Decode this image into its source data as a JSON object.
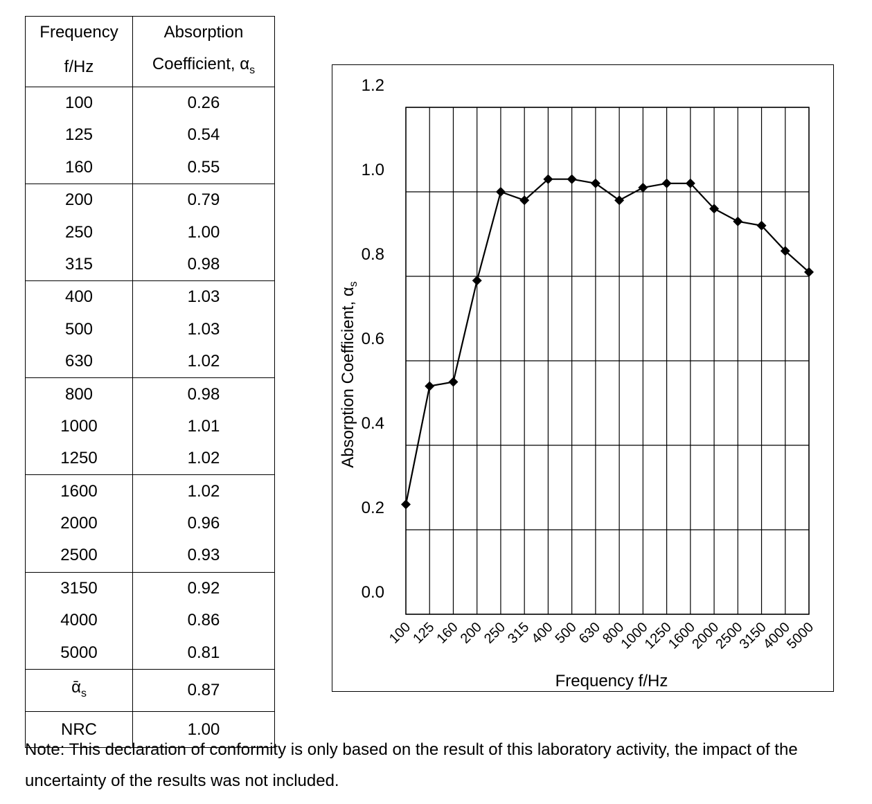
{
  "table": {
    "header": {
      "col1_line1": "Frequency",
      "col1_line2": "f/Hz",
      "col2_line1": "Absorption",
      "col2_line2": "Coefficient, α",
      "col2_line2_sub": "s"
    },
    "groups": [
      [
        {
          "f": "100",
          "a": "0.26"
        },
        {
          "f": "125",
          "a": "0.54"
        },
        {
          "f": "160",
          "a": "0.55"
        }
      ],
      [
        {
          "f": "200",
          "a": "0.79"
        },
        {
          "f": "250",
          "a": "1.00"
        },
        {
          "f": "315",
          "a": "0.98"
        }
      ],
      [
        {
          "f": "400",
          "a": "1.03"
        },
        {
          "f": "500",
          "a": "1.03"
        },
        {
          "f": "630",
          "a": "1.02"
        }
      ],
      [
        {
          "f": "800",
          "a": "0.98"
        },
        {
          "f": "1000",
          "a": "1.01"
        },
        {
          "f": "1250",
          "a": "1.02"
        }
      ],
      [
        {
          "f": "1600",
          "a": "1.02"
        },
        {
          "f": "2000",
          "a": "0.96"
        },
        {
          "f": "2500",
          "a": "0.93"
        }
      ],
      [
        {
          "f": "3150",
          "a": "0.92"
        },
        {
          "f": "4000",
          "a": "0.86"
        },
        {
          "f": "5000",
          "a": "0.81"
        }
      ]
    ],
    "mean_label": "ᾱ",
    "mean_label_sub": "s",
    "mean_value": "0.87",
    "nrc_label": "NRC",
    "nrc_value": "1.00"
  },
  "note": "Note: This declaration of conformity is only based on the result of this laboratory activity, the impact of the uncertainty of the results was not included.",
  "chart_data": {
    "type": "line",
    "title": "",
    "xlabel": "Frequency f/Hz",
    "ylabel": "Absorption Coefficient, α",
    "ylabel_sub": "s",
    "categories": [
      "100",
      "125",
      "160",
      "200",
      "250",
      "315",
      "400",
      "500",
      "630",
      "800",
      "1000",
      "1250",
      "1600",
      "2000",
      "2500",
      "3150",
      "4000",
      "5000"
    ],
    "values": [
      0.26,
      0.54,
      0.55,
      0.79,
      1.0,
      0.98,
      1.03,
      1.03,
      1.02,
      0.98,
      1.01,
      1.02,
      1.02,
      0.96,
      0.93,
      0.92,
      0.86,
      0.81
    ],
    "ylim": [
      0.0,
      1.2
    ],
    "yticks": [
      "0.0",
      "0.2",
      "0.4",
      "0.6",
      "0.8",
      "1.0",
      "1.2"
    ],
    "grid": true,
    "marker": "diamond",
    "line_color": "#000000"
  }
}
